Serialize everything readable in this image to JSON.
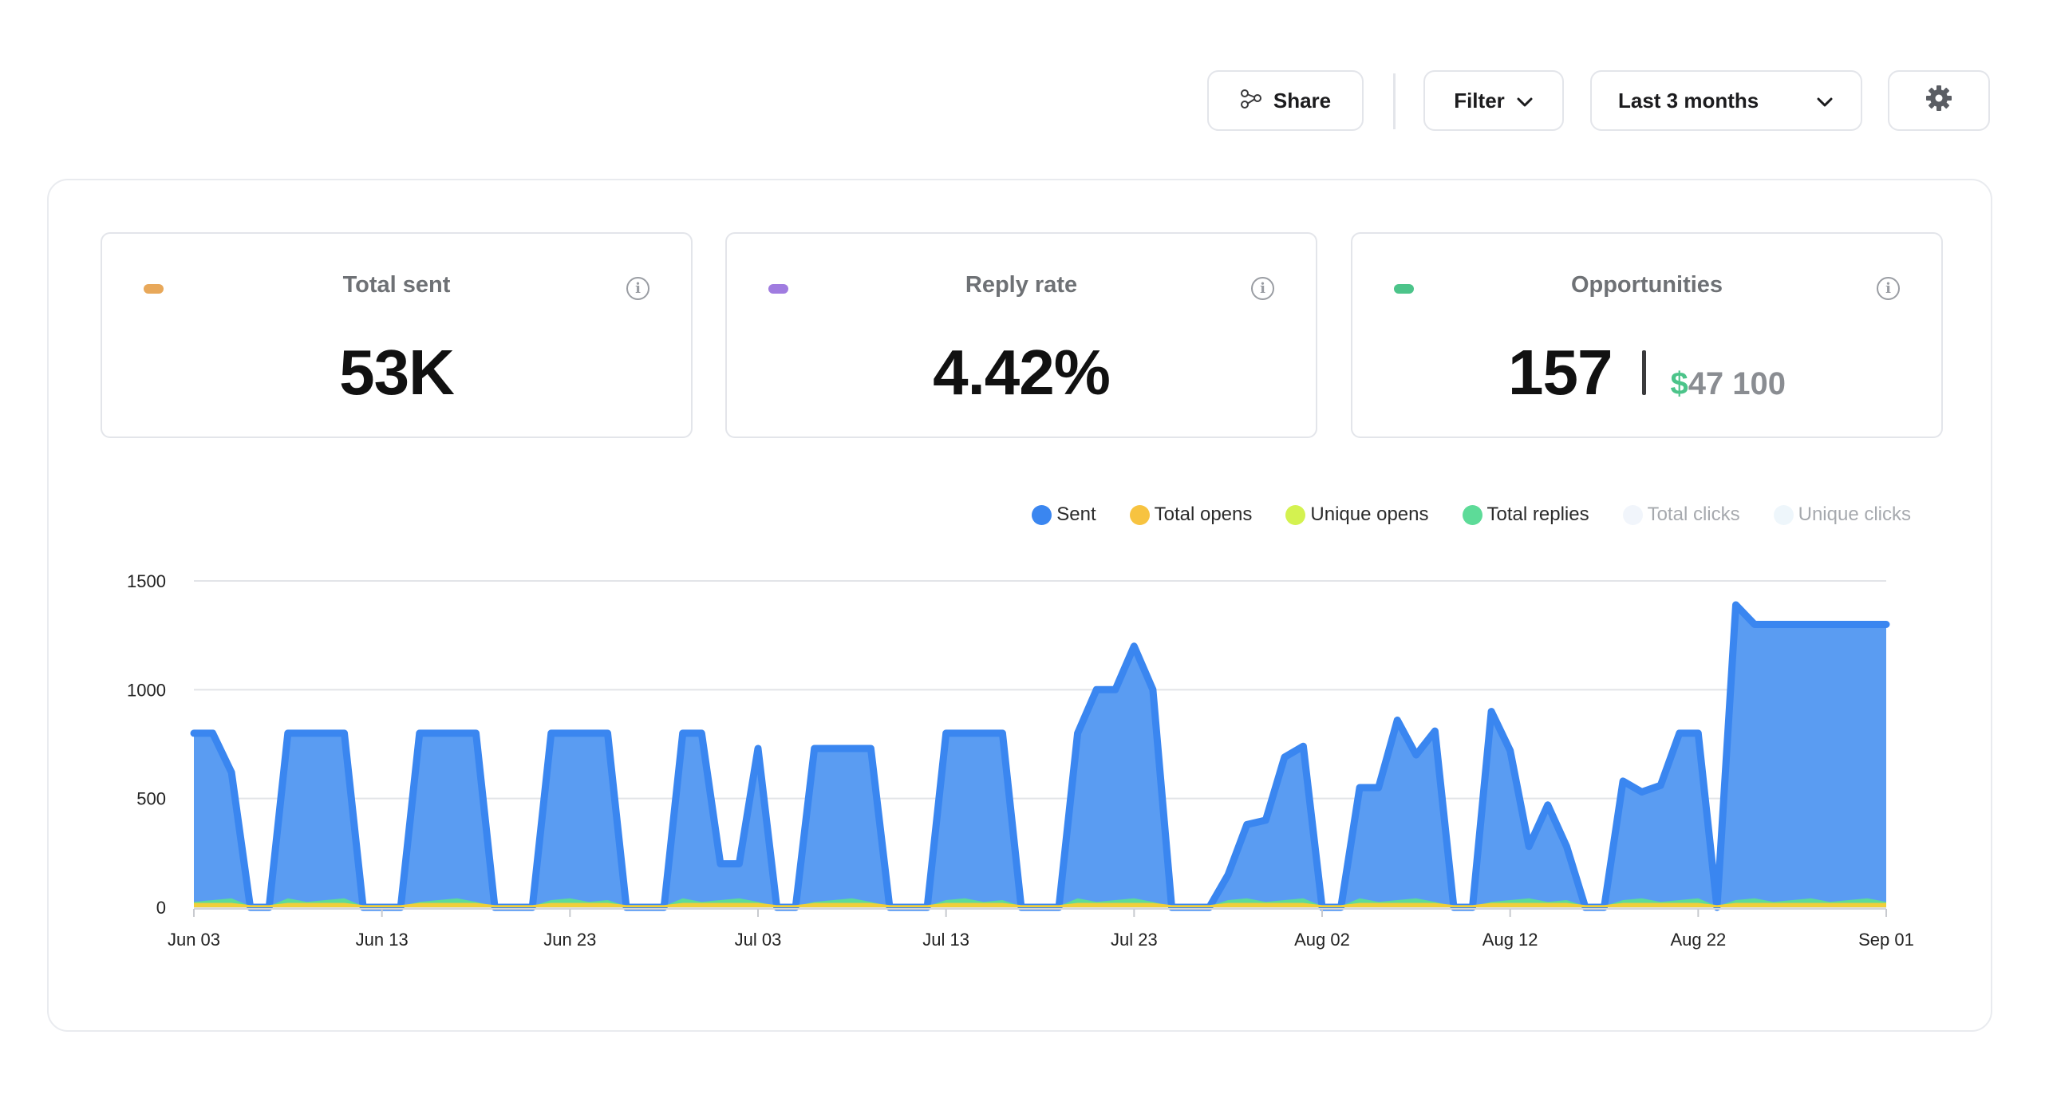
{
  "toolbar": {
    "share_label": "Share",
    "filter_label": "Filter",
    "range_label": "Last 3 months"
  },
  "stats": {
    "total_sent": {
      "title": "Total sent",
      "value": "53K",
      "color": "#e8a85a"
    },
    "reply_rate": {
      "title": "Reply rate",
      "value": "4.42%",
      "color": "#a07ce0"
    },
    "opportunities": {
      "title": "Opportunities",
      "value": "157",
      "currency": "$",
      "amount": "47 100",
      "color": "#4cc48a"
    }
  },
  "legend": [
    {
      "label": "Sent",
      "color": "#3a86f0",
      "muted": false
    },
    {
      "label": "Total opens",
      "color": "#f7c340",
      "muted": false
    },
    {
      "label": "Unique opens",
      "color": "#d4f250",
      "muted": false
    },
    {
      "label": "Total replies",
      "color": "#5ddb98",
      "muted": false
    },
    {
      "label": "Total clicks",
      "color": "#f1f5fb",
      "muted": true
    },
    {
      "label": "Unique clicks",
      "color": "#eef6fb",
      "muted": true
    }
  ],
  "chart_data": {
    "type": "area",
    "ylim": [
      0,
      1500
    ],
    "y_ticks": [
      "0",
      "500",
      "1000",
      "1500"
    ],
    "x_ticks": [
      "Jun 03",
      "Jun 13",
      "Jun 23",
      "Jul 03",
      "Jul 13",
      "Jul 23",
      "Aug 02",
      "Aug 12",
      "Aug 22",
      "Sep 01"
    ],
    "grid": true,
    "legend_position": "top-right",
    "series": [
      {
        "name": "Sent",
        "color": "#3a86f0",
        "points": [
          [
            "Jun 03",
            800
          ],
          [
            "Jun 04",
            800
          ],
          [
            "Jun 05",
            620
          ],
          [
            "Jun 06",
            0
          ],
          [
            "Jun 07",
            0
          ],
          [
            "Jun 08",
            800
          ],
          [
            "Jun 09",
            800
          ],
          [
            "Jun 10",
            800
          ],
          [
            "Jun 11",
            800
          ],
          [
            "Jun 12",
            0
          ],
          [
            "Jun 13",
            0
          ],
          [
            "Jun 14",
            0
          ],
          [
            "Jun 15",
            800
          ],
          [
            "Jun 16",
            800
          ],
          [
            "Jun 17",
            800
          ],
          [
            "Jun 18",
            800
          ],
          [
            "Jun 19",
            0
          ],
          [
            "Jun 20",
            0
          ],
          [
            "Jun 21",
            0
          ],
          [
            "Jun 22",
            800
          ],
          [
            "Jun 23",
            800
          ],
          [
            "Jun 24",
            800
          ],
          [
            "Jun 25",
            800
          ],
          [
            "Jun 26",
            0
          ],
          [
            "Jun 27",
            0
          ],
          [
            "Jun 28",
            0
          ],
          [
            "Jun 29",
            800
          ],
          [
            "Jun 30",
            800
          ],
          [
            "Jul 01",
            200
          ],
          [
            "Jul 02",
            200
          ],
          [
            "Jul 03",
            730
          ],
          [
            "Jul 04",
            0
          ],
          [
            "Jul 05",
            0
          ],
          [
            "Jul 06",
            730
          ],
          [
            "Jul 07",
            730
          ],
          [
            "Jul 08",
            730
          ],
          [
            "Jul 09",
            730
          ],
          [
            "Jul 10",
            0
          ],
          [
            "Jul 11",
            0
          ],
          [
            "Jul 12",
            0
          ],
          [
            "Jul 13",
            800
          ],
          [
            "Jul 14",
            800
          ],
          [
            "Jul 15",
            800
          ],
          [
            "Jul 16",
            800
          ],
          [
            "Jul 17",
            0
          ],
          [
            "Jul 18",
            0
          ],
          [
            "Jul 19",
            0
          ],
          [
            "Jul 20",
            800
          ],
          [
            "Jul 21",
            1000
          ],
          [
            "Jul 22",
            1000
          ],
          [
            "Jul 23",
            1200
          ],
          [
            "Jul 24",
            1000
          ],
          [
            "Jul 25",
            0
          ],
          [
            "Jul 26",
            0
          ],
          [
            "Jul 27",
            0
          ],
          [
            "Jul 28",
            150
          ],
          [
            "Jul 29",
            380
          ],
          [
            "Jul 30",
            400
          ],
          [
            "Jul 31",
            690
          ],
          [
            "Aug 01",
            740
          ],
          [
            "Aug 02",
            0
          ],
          [
            "Aug 03",
            0
          ],
          [
            "Aug 04",
            550
          ],
          [
            "Aug 05",
            550
          ],
          [
            "Aug 06",
            860
          ],
          [
            "Aug 07",
            700
          ],
          [
            "Aug 08",
            810
          ],
          [
            "Aug 09",
            0
          ],
          [
            "Aug 10",
            0
          ],
          [
            "Aug 11",
            900
          ],
          [
            "Aug 12",
            720
          ],
          [
            "Aug 13",
            280
          ],
          [
            "Aug 14",
            470
          ],
          [
            "Aug 15",
            280
          ],
          [
            "Aug 16",
            0
          ],
          [
            "Aug 17",
            0
          ],
          [
            "Aug 18",
            580
          ],
          [
            "Aug 19",
            530
          ],
          [
            "Aug 20",
            560
          ],
          [
            "Aug 21",
            800
          ],
          [
            "Aug 22",
            800
          ],
          [
            "Aug 23",
            0
          ],
          [
            "Aug 24",
            1390
          ],
          [
            "Aug 25",
            1300
          ],
          [
            "Aug 26",
            1300
          ],
          [
            "Aug 27",
            1300
          ],
          [
            "Aug 28",
            1300
          ],
          [
            "Aug 29",
            1300
          ],
          [
            "Aug 30",
            1300
          ],
          [
            "Aug 31",
            1300
          ],
          [
            "Sep 01",
            1300
          ]
        ]
      },
      {
        "name": "Total replies",
        "color": "#5ddb98",
        "approx_level": [
          25,
          55
        ]
      },
      {
        "name": "Total opens",
        "color": "#f7c340",
        "approx_level": [
          10,
          20
        ]
      }
    ]
  }
}
